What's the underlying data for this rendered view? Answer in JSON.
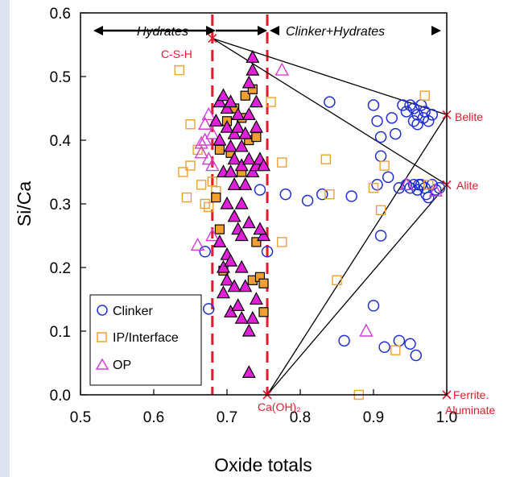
{
  "chart_data": {
    "type": "scatter",
    "title": "",
    "xlabel": "Oxide totals",
    "ylabel": "Si/Ca",
    "xlim": [
      0.5,
      1.0
    ],
    "ylim": [
      0.0,
      0.6
    ],
    "x_ticks": [
      "0.5",
      "0.6",
      "0.7",
      "0.8",
      "0.9",
      "1.0"
    ],
    "y_ticks": [
      "0.0",
      "0.1",
      "0.2",
      "0.3",
      "0.4",
      "0.5",
      "0.6"
    ],
    "grid": false,
    "legend_position": "bottom-left",
    "colors": {
      "clinker": "#1f2fd6",
      "ip": "#f0a030",
      "op_edge": "#d63cd6",
      "op_fill": "#e020d8",
      "anno": "#e8192c"
    },
    "regions": {
      "hydrates": "Hydrates",
      "clinker_hydrates": "Clinker+Hydrates"
    },
    "vlines": [
      0.68,
      0.755
    ],
    "references": [
      {
        "label": "C-S-H",
        "x": 0.68,
        "y": 0.56
      },
      {
        "label": "Belite",
        "x": 1.0,
        "y": 0.44
      },
      {
        "label": "Alite",
        "x": 1.0,
        "y": 0.33
      },
      {
        "label": "Ca(OH)₂",
        "x": 0.755,
        "y": 0.0
      },
      {
        "label": "Ferrite.\nAluminate",
        "x": 1.0,
        "y": 0.0
      }
    ],
    "tie_lines": [
      [
        [
          0.68,
          0.56
        ],
        [
          1.0,
          0.44
        ]
      ],
      [
        [
          0.68,
          0.56
        ],
        [
          1.0,
          0.33
        ]
      ],
      [
        [
          0.755,
          0.0
        ],
        [
          1.0,
          0.44
        ]
      ],
      [
        [
          0.755,
          0.0
        ],
        [
          1.0,
          0.33
        ]
      ]
    ],
    "series": [
      {
        "name": "Clinker",
        "marker": "circle-open",
        "points": [
          [
            0.67,
            0.225
          ],
          [
            0.675,
            0.135
          ],
          [
            0.755,
            0.225
          ],
          [
            0.745,
            0.322
          ],
          [
            0.78,
            0.315
          ],
          [
            0.81,
            0.305
          ],
          [
            0.83,
            0.315
          ],
          [
            0.84,
            0.46
          ],
          [
            0.87,
            0.312
          ],
          [
            0.9,
            0.455
          ],
          [
            0.905,
            0.43
          ],
          [
            0.91,
            0.405
          ],
          [
            0.91,
            0.375
          ],
          [
            0.905,
            0.33
          ],
          [
            0.91,
            0.25
          ],
          [
            0.9,
            0.14
          ],
          [
            0.86,
            0.085
          ],
          [
            0.915,
            0.075
          ],
          [
            0.935,
            0.085
          ],
          [
            0.95,
            0.08
          ],
          [
            0.958,
            0.062
          ],
          [
            0.925,
            0.435
          ],
          [
            0.93,
            0.41
          ],
          [
            0.935,
            0.325
          ],
          [
            0.92,
            0.342
          ],
          [
            0.94,
            0.455
          ],
          [
            0.945,
            0.445
          ],
          [
            0.95,
            0.455
          ],
          [
            0.955,
            0.45
          ],
          [
            0.96,
            0.44
          ],
          [
            0.965,
            0.455
          ],
          [
            0.97,
            0.445
          ],
          [
            0.975,
            0.43
          ],
          [
            0.98,
            0.44
          ],
          [
            0.955,
            0.43
          ],
          [
            0.96,
            0.425
          ],
          [
            0.968,
            0.435
          ],
          [
            0.945,
            0.33
          ],
          [
            0.95,
            0.325
          ],
          [
            0.955,
            0.33
          ],
          [
            0.96,
            0.322
          ],
          [
            0.965,
            0.33
          ],
          [
            0.97,
            0.325
          ],
          [
            0.975,
            0.31
          ],
          [
            0.98,
            0.33
          ],
          [
            0.985,
            0.322
          ],
          [
            0.972,
            0.315
          ],
          [
            0.962,
            0.33
          ],
          [
            0.99,
            0.325
          ]
        ]
      },
      {
        "name": "IP/Interface",
        "marker": "square-open",
        "points": [
          [
            0.635,
            0.51
          ],
          [
            0.64,
            0.35
          ],
          [
            0.645,
            0.31
          ],
          [
            0.65,
            0.425
          ],
          [
            0.65,
            0.36
          ],
          [
            0.66,
            0.385
          ],
          [
            0.665,
            0.33
          ],
          [
            0.67,
            0.3
          ],
          [
            0.675,
            0.295
          ],
          [
            0.68,
            0.335
          ],
          [
            0.685,
            0.32
          ],
          [
            0.76,
            0.46
          ],
          [
            0.775,
            0.365
          ],
          [
            0.775,
            0.24
          ],
          [
            0.835,
            0.37
          ],
          [
            0.84,
            0.315
          ],
          [
            0.85,
            0.18
          ],
          [
            0.88,
            0.0
          ],
          [
            0.9,
            0.325
          ],
          [
            0.91,
            0.29
          ],
          [
            0.915,
            0.36
          ],
          [
            0.93,
            0.07
          ],
          [
            0.97,
            0.47
          ],
          [
            0.975,
            0.33
          ]
        ]
      },
      {
        "name": "IP-filled",
        "marker": "square-filled",
        "points": [
          [
            0.685,
            0.31
          ],
          [
            0.69,
            0.385
          ],
          [
            0.69,
            0.26
          ],
          [
            0.695,
            0.195
          ],
          [
            0.7,
            0.43
          ],
          [
            0.705,
            0.38
          ],
          [
            0.71,
            0.45
          ],
          [
            0.72,
            0.435
          ],
          [
            0.72,
            0.35
          ],
          [
            0.725,
            0.47
          ],
          [
            0.73,
            0.4
          ],
          [
            0.735,
            0.48
          ],
          [
            0.74,
            0.405
          ],
          [
            0.74,
            0.24
          ],
          [
            0.735,
            0.18
          ],
          [
            0.745,
            0.185
          ],
          [
            0.75,
            0.175
          ],
          [
            0.75,
            0.13
          ]
        ]
      },
      {
        "name": "OP",
        "marker": "triangle-open",
        "points": [
          [
            0.66,
            0.235
          ],
          [
            0.665,
            0.38
          ],
          [
            0.665,
            0.395
          ],
          [
            0.67,
            0.4
          ],
          [
            0.67,
            0.425
          ],
          [
            0.675,
            0.44
          ],
          [
            0.68,
            0.41
          ],
          [
            0.68,
            0.36
          ],
          [
            0.675,
            0.37
          ],
          [
            0.68,
            0.25
          ],
          [
            0.775,
            0.51
          ],
          [
            0.89,
            0.1
          ],
          [
            0.945,
            0.33
          ],
          [
            0.985,
            0.32
          ]
        ]
      },
      {
        "name": "OP-filled",
        "marker": "triangle-filled",
        "points": [
          [
            0.685,
            0.43
          ],
          [
            0.69,
            0.46
          ],
          [
            0.69,
            0.4
          ],
          [
            0.695,
            0.47
          ],
          [
            0.695,
            0.35
          ],
          [
            0.7,
            0.45
          ],
          [
            0.7,
            0.42
          ],
          [
            0.7,
            0.3
          ],
          [
            0.705,
            0.39
          ],
          [
            0.705,
            0.46
          ],
          [
            0.705,
            0.35
          ],
          [
            0.71,
            0.41
          ],
          [
            0.71,
            0.37
          ],
          [
            0.71,
            0.33
          ],
          [
            0.71,
            0.28
          ],
          [
            0.715,
            0.44
          ],
          [
            0.715,
            0.42
          ],
          [
            0.715,
            0.26
          ],
          [
            0.72,
            0.39
          ],
          [
            0.72,
            0.36
          ],
          [
            0.72,
            0.3
          ],
          [
            0.72,
            0.25
          ],
          [
            0.725,
            0.41
          ],
          [
            0.725,
            0.33
          ],
          [
            0.73,
            0.49
          ],
          [
            0.73,
            0.44
          ],
          [
            0.73,
            0.37
          ],
          [
            0.73,
            0.27
          ],
          [
            0.735,
            0.51
          ],
          [
            0.735,
            0.35
          ],
          [
            0.74,
            0.46
          ],
          [
            0.74,
            0.42
          ],
          [
            0.74,
            0.36
          ],
          [
            0.745,
            0.37
          ],
          [
            0.75,
            0.36
          ],
          [
            0.75,
            0.25
          ],
          [
            0.745,
            0.26
          ],
          [
            0.735,
            0.53
          ],
          [
            0.69,
            0.24
          ],
          [
            0.695,
            0.2
          ],
          [
            0.7,
            0.22
          ],
          [
            0.7,
            0.18
          ],
          [
            0.705,
            0.21
          ],
          [
            0.705,
            0.13
          ],
          [
            0.71,
            0.17
          ],
          [
            0.715,
            0.14
          ],
          [
            0.72,
            0.2
          ],
          [
            0.72,
            0.12
          ],
          [
            0.725,
            0.17
          ],
          [
            0.73,
            0.1
          ],
          [
            0.735,
            0.12
          ],
          [
            0.74,
            0.15
          ],
          [
            0.73,
            0.035
          ],
          [
            0.695,
            0.16
          ]
        ]
      }
    ],
    "legend": [
      "Clinker",
      "IP/Interface",
      "OP"
    ]
  }
}
